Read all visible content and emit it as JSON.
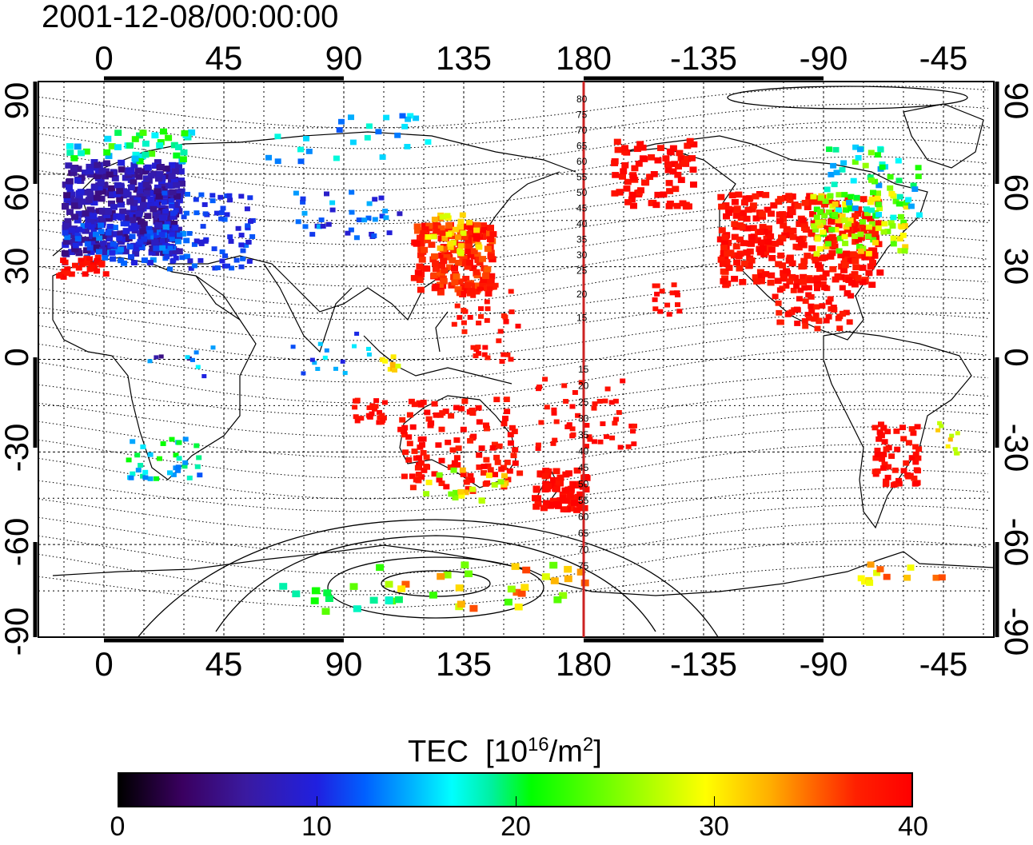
{
  "title": "2001-12-08/00:00:00",
  "map": {
    "lon_labels": [
      "0",
      "45",
      "90",
      "135",
      "180",
      "-135",
      "-90",
      "-45"
    ],
    "lat_labels": [
      "90",
      "60",
      "30",
      "0",
      "-30",
      "-60",
      "-90"
    ],
    "meridian_label": "180",
    "contour_labels_north": [
      "80",
      "75",
      "70",
      "65",
      "60",
      "55",
      "50",
      "45",
      "40",
      "35",
      "30",
      "25",
      "20",
      "15"
    ],
    "contour_labels_south": [
      "15",
      "20",
      "25",
      "30",
      "35",
      "40",
      "45",
      "50",
      "55",
      "60",
      "65",
      "70",
      "75"
    ]
  },
  "colorbar": {
    "label_main": "TEC",
    "label_unit_prefix": "[10",
    "label_unit_exp": "16",
    "label_unit_mid": "/m",
    "label_unit_exp2": "2",
    "label_unit_suffix": "]",
    "ticks": [
      "0",
      "10",
      "20",
      "30",
      "40"
    ],
    "range": [
      0,
      40
    ]
  },
  "colors": {
    "low": "#000000",
    "mid_blue": "#2020e0",
    "mid_cyan": "#00ffff",
    "mid_green": "#00ff00",
    "mid_yellow": "#ffff00",
    "high": "#ff0000",
    "meridian_line": "#cc2222"
  }
}
